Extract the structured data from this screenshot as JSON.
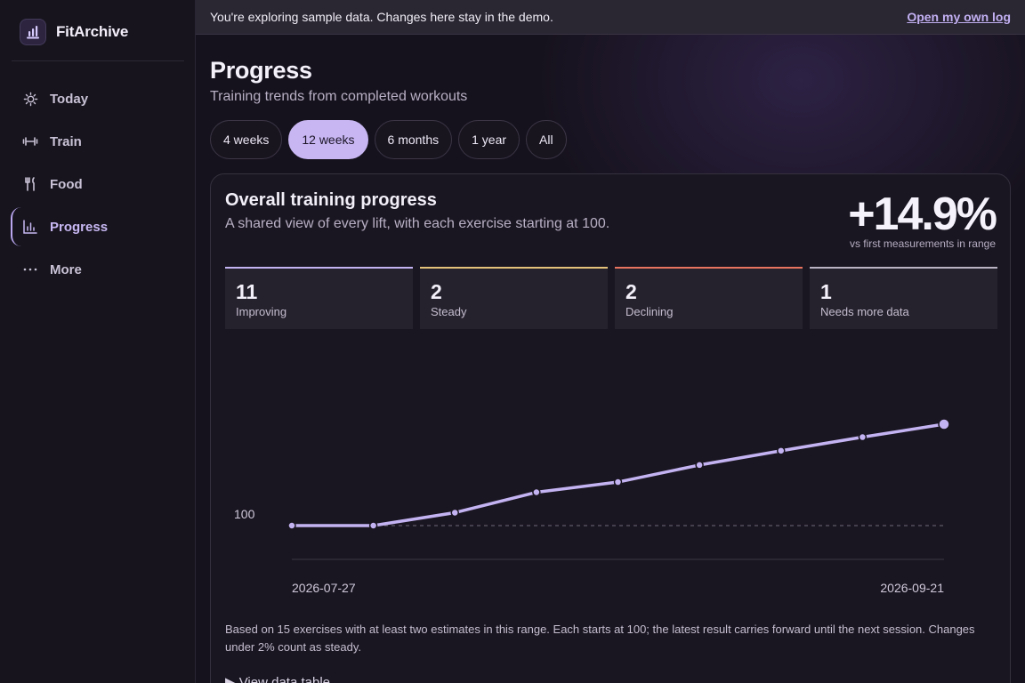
{
  "app": {
    "name": "FitArchive",
    "logo_icon": "bar-chart-logo-icon"
  },
  "sidebar": {
    "items": [
      {
        "label": "Today",
        "icon": "sun-icon",
        "active": false
      },
      {
        "label": "Train",
        "icon": "dumbbell-icon",
        "active": false
      },
      {
        "label": "Food",
        "icon": "utensils-icon",
        "active": false
      },
      {
        "label": "Progress",
        "icon": "bar-chart-icon",
        "active": true
      },
      {
        "label": "More",
        "icon": "more-dots-icon",
        "active": false
      }
    ]
  },
  "banner": {
    "text": "You're exploring sample data. Changes here stay in the demo.",
    "link": "Open my own log"
  },
  "page": {
    "title": "Progress",
    "subtitle": "Training trends from completed workouts"
  },
  "ranges": [
    {
      "label": "4 weeks",
      "active": false
    },
    {
      "label": "12 weeks",
      "active": true
    },
    {
      "label": "6 months",
      "active": false
    },
    {
      "label": "1 year",
      "active": false
    },
    {
      "label": "All",
      "active": false
    }
  ],
  "card": {
    "title": "Overall training progress",
    "subtitle": "A shared view of every lift, with each exercise starting at 100.",
    "change": "+14.9%",
    "change_caption": "vs first measurements in range",
    "stats": [
      {
        "value": "11",
        "label": "Improving",
        "color": "#c4b3f2"
      },
      {
        "value": "2",
        "label": "Steady",
        "color": "#e5c27a"
      },
      {
        "value": "2",
        "label": "Declining",
        "color": "#e8745f"
      },
      {
        "value": "1",
        "label": "Needs more data",
        "color": "#b9b3c4"
      }
    ],
    "note": "Based on 15 exercises with at least two estimates in this range. Each starts at 100; the latest result carries forward until the next session. Changes under 2% count as steady.",
    "data_table_toggle": "▶ View data table"
  },
  "chart_data": {
    "type": "line",
    "x_start_label": "2026-07-27",
    "x_end_label": "2026-09-21",
    "x": [
      "2026-07-27",
      "2026-08-03",
      "2026-08-10",
      "2026-08-17",
      "2026-08-24",
      "2026-08-31",
      "2026-09-07",
      "2026-09-14",
      "2026-09-21"
    ],
    "values": [
      100,
      100,
      101.9,
      104.9,
      106.4,
      108.9,
      111.0,
      113.0,
      114.9
    ],
    "baseline": 100,
    "baseline_label": "100",
    "ylim": [
      95,
      116
    ],
    "line_color": "#c4b3f2",
    "grid": false
  }
}
